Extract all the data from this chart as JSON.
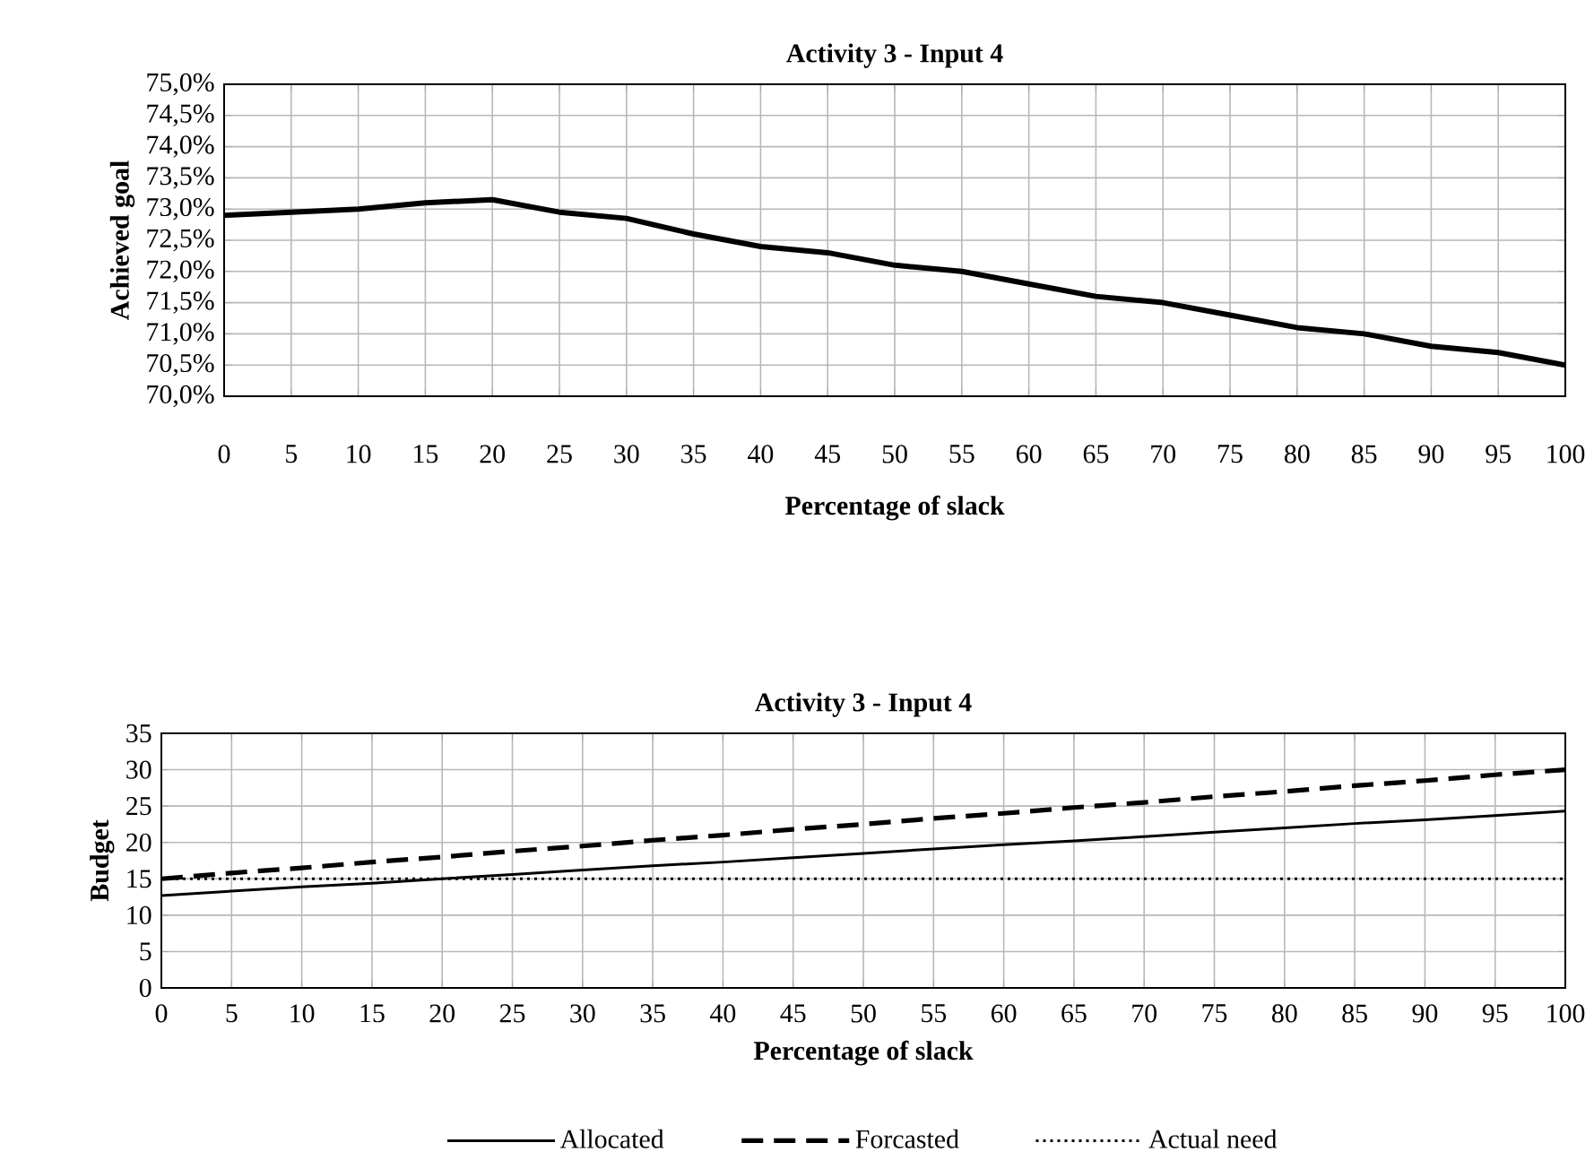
{
  "chart_data": [
    {
      "type": "line",
      "title": "Activity 3 - Input 4",
      "xlabel": "Percentage of slack",
      "ylabel": "Achieved goal",
      "categories": [
        "0",
        "5",
        "10",
        "15",
        "20",
        "25",
        "30",
        "35",
        "40",
        "45",
        "50",
        "55",
        "60",
        "65",
        "70",
        "75",
        "80",
        "85",
        "90",
        "95",
        "100"
      ],
      "values": [
        72.9,
        72.95,
        73.0,
        73.1,
        73.15,
        72.95,
        72.85,
        72.6,
        72.4,
        72.3,
        72.1,
        72.0,
        71.8,
        71.6,
        71.5,
        71.3,
        71.1,
        71.0,
        70.8,
        70.7,
        70.5
      ],
      "color": "#000000",
      "ylim": [
        70,
        75
      ],
      "yticks": [
        {
          "value": 70,
          "label": "70,0%"
        },
        {
          "value": 70.5,
          "label": "70,5%"
        },
        {
          "value": 71,
          "label": "71,0%"
        },
        {
          "value": 71.5,
          "label": "71,5%"
        },
        {
          "value": 72,
          "label": "72,0%"
        },
        {
          "value": 72.5,
          "label": "72,5%"
        },
        {
          "value": 73,
          "label": "73,0%"
        },
        {
          "value": 73.5,
          "label": "73,5%"
        },
        {
          "value": 74,
          "label": "74,0%"
        },
        {
          "value": 74.5,
          "label": "74,5%"
        },
        {
          "value": 75,
          "label": "75,0%"
        }
      ],
      "grid": true
    },
    {
      "type": "line",
      "title": "Activity 3 - Input 4",
      "xlabel": "Percentage of slack",
      "ylabel": "Budget",
      "categories": [
        "0",
        "5",
        "10",
        "15",
        "20",
        "25",
        "30",
        "35",
        "40",
        "45",
        "50",
        "55",
        "60",
        "65",
        "70",
        "75",
        "80",
        "85",
        "90",
        "95",
        "100"
      ],
      "series": [
        {
          "name": "Allocated",
          "color": "#000000",
          "line_style": "solid",
          "values": [
            12.7,
            13.3,
            13.9,
            14.4,
            15.0,
            15.6,
            16.2,
            16.8,
            17.3,
            17.9,
            18.5,
            19.1,
            19.7,
            20.2,
            20.8,
            21.4,
            22.0,
            22.6,
            23.1,
            23.7,
            24.3
          ]
        },
        {
          "name": "Forcasted",
          "color": "#000000",
          "line_style": "dashed",
          "values": [
            15,
            15.8,
            16.5,
            17.3,
            18,
            18.8,
            19.5,
            20.3,
            21,
            21.8,
            22.5,
            23.3,
            24,
            24.8,
            25.5,
            26.3,
            27,
            27.8,
            28.5,
            29.3,
            30
          ]
        },
        {
          "name": "Actual need",
          "color": "#000000",
          "line_style": "dotted",
          "values": [
            15,
            15,
            15,
            15,
            15,
            15,
            15,
            15,
            15,
            15,
            15,
            15,
            15,
            15,
            15,
            15,
            15,
            15,
            15,
            15,
            15
          ]
        }
      ],
      "ylim": [
        0,
        35
      ],
      "yticks": [
        0,
        5,
        10,
        15,
        20,
        25,
        30,
        35
      ],
      "grid": true,
      "legend": "bottom"
    }
  ]
}
